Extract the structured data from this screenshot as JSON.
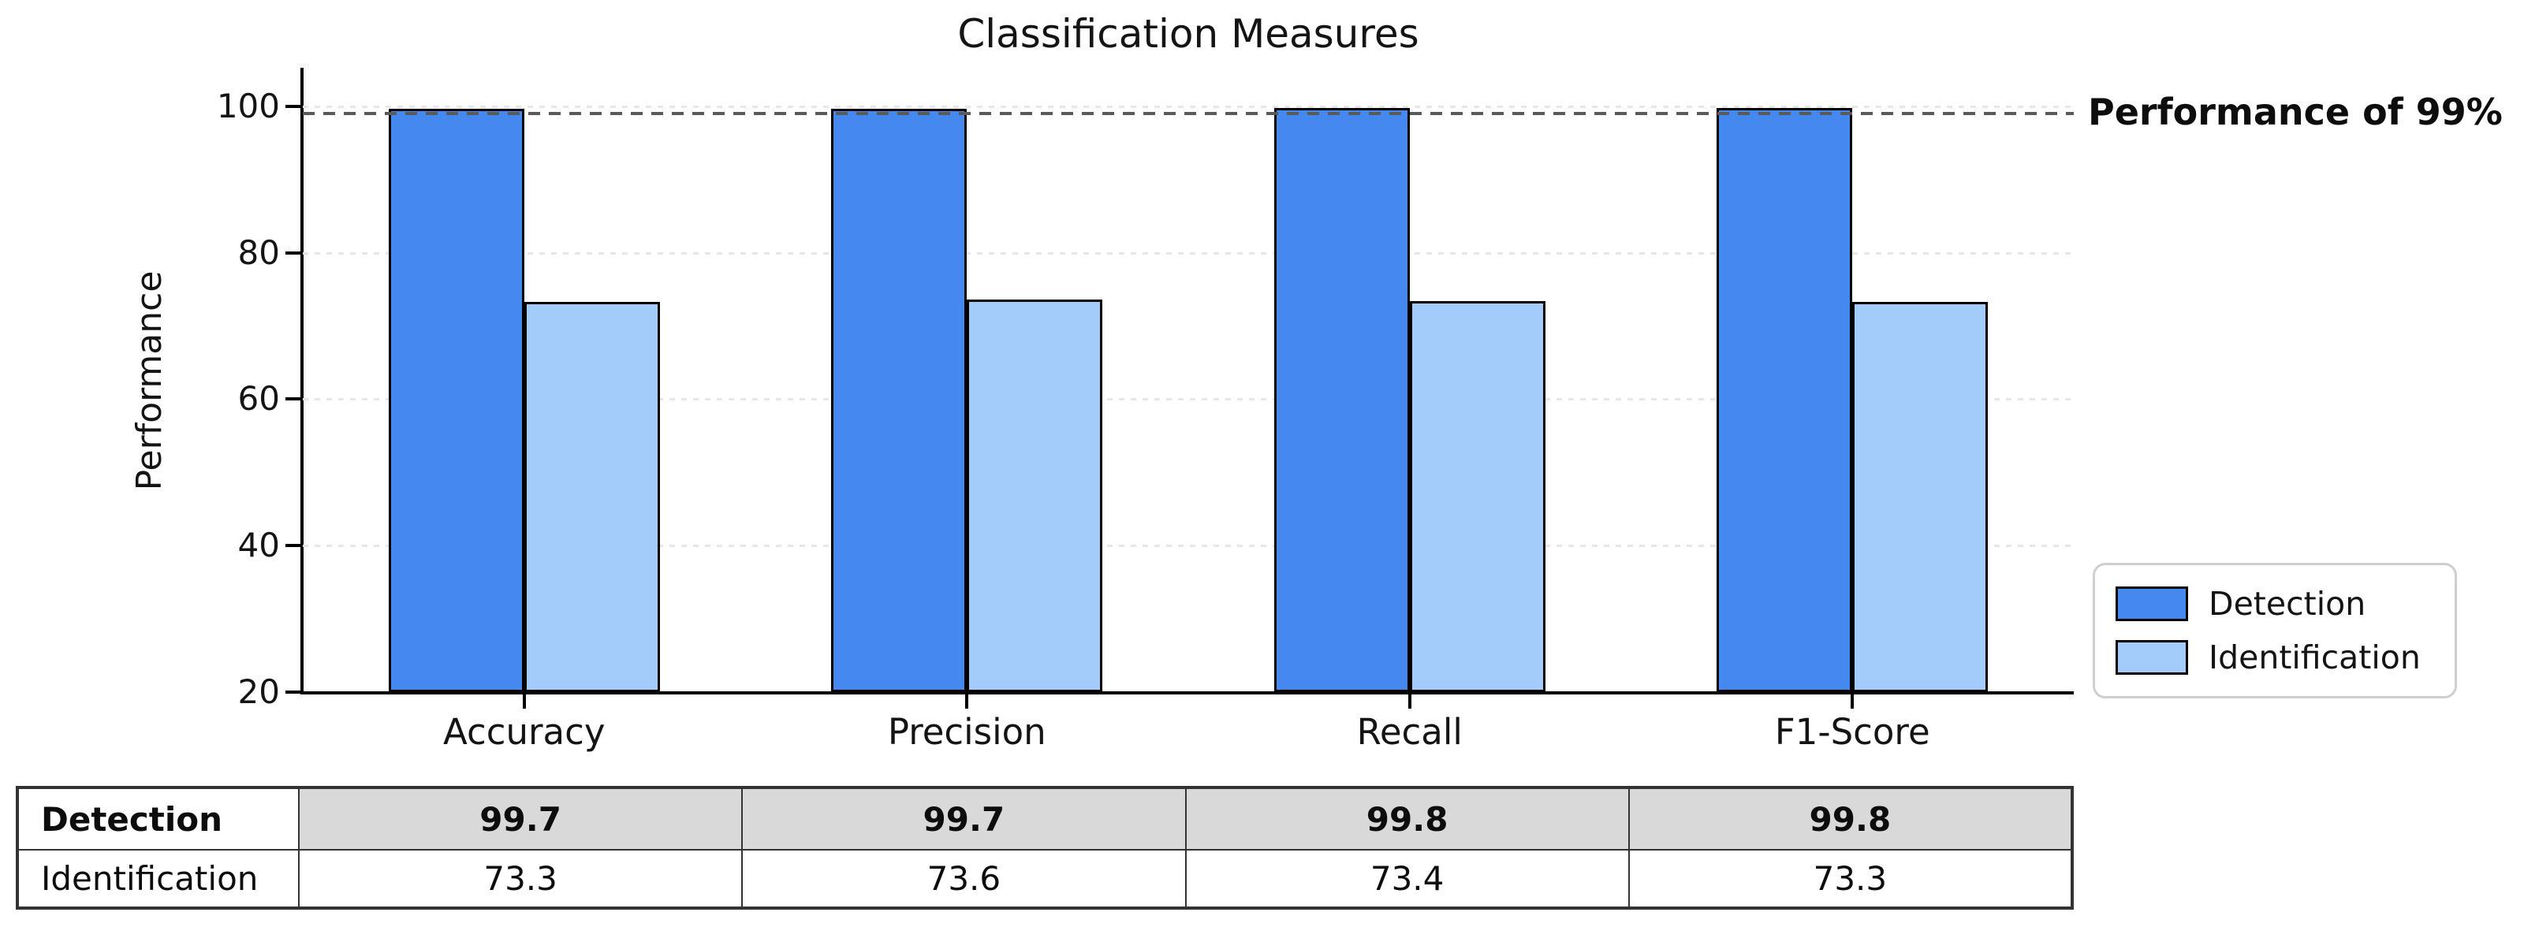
{
  "chart_data": {
    "type": "bar",
    "title": "Classification Measures",
    "xlabel": "",
    "ylabel": "Performance",
    "categories": [
      "Accuracy",
      "Precision",
      "Recall",
      "F1-Score"
    ],
    "series": [
      {
        "name": "Detection",
        "color": "#4588f0",
        "values": [
          99.7,
          99.7,
          99.8,
          99.8
        ]
      },
      {
        "name": "Identification",
        "color": "#a3ccfa",
        "values": [
          73.3,
          73.6,
          73.4,
          73.3
        ]
      }
    ],
    "ylim": [
      20,
      105
    ],
    "yticks": [
      20,
      40,
      60,
      80,
      100
    ],
    "grid": "horizontal dotted",
    "legend_position": "lower right outside plot",
    "annotation_line": {
      "y": 99,
      "label": "Performance of 99%",
      "style": "dashed"
    }
  },
  "table": {
    "rows": [
      {
        "label": "Detection",
        "values": [
          "99.7",
          "99.7",
          "99.8",
          "99.8"
        ],
        "bold": true,
        "shaded": true
      },
      {
        "label": "Identification",
        "values": [
          "73.3",
          "73.6",
          "73.4",
          "73.3"
        ],
        "bold": false,
        "shaded": false
      }
    ]
  },
  "colors": {
    "detection": "#4588f0",
    "identification": "#a3ccfa",
    "grid": "#e7e7e7",
    "refline": "#5a5a5a",
    "shade": "#d9d9d9",
    "border": "#333333",
    "text": "#111111"
  }
}
